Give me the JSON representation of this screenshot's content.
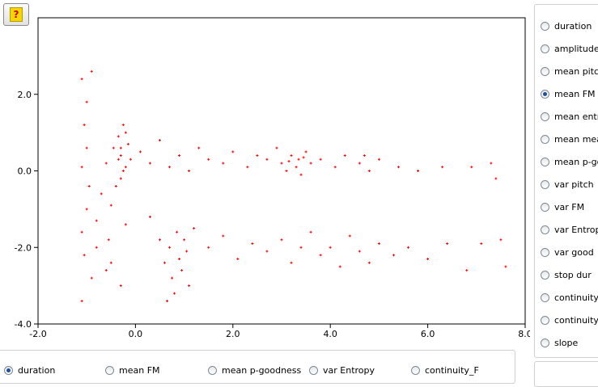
{
  "help_button": {
    "label": "?"
  },
  "chart_data": {
    "type": "scatter",
    "color": "#ff0000",
    "xlim": [
      -2,
      8
    ],
    "ylim": [
      -4,
      4
    ],
    "xticks": [
      {
        "value": -2,
        "label": "-2.0"
      },
      {
        "value": 0,
        "label": "0.0"
      },
      {
        "value": 2,
        "label": "2.0"
      },
      {
        "value": 4,
        "label": "4.0"
      },
      {
        "value": 6,
        "label": "6.0"
      },
      {
        "value": 8,
        "label": "8.0"
      }
    ],
    "yticks": [
      {
        "value": -4,
        "label": "-4.0"
      },
      {
        "value": -2,
        "label": "-2.0"
      },
      {
        "value": 0,
        "label": "0.0"
      },
      {
        "value": 2,
        "label": "2.0"
      }
    ],
    "x": [
      -1.1,
      -1.0,
      -0.9,
      -1.05,
      -1.0,
      -1.1,
      -0.95,
      -1.0,
      -1.1,
      -1.05,
      -0.9,
      -1.1,
      -0.8,
      -0.7,
      -0.6,
      -0.55,
      -0.5,
      -0.45,
      -0.35,
      -0.3,
      -0.25,
      -0.2,
      -0.3,
      -0.15,
      -0.25,
      -0.35,
      -0.2,
      -0.3,
      -0.1,
      -0.4,
      -0.6,
      -0.3,
      0.1,
      0.3,
      0.5,
      0.7,
      0.9,
      1.1,
      1.3,
      1.5,
      1.8,
      2.0,
      2.3,
      2.5,
      2.7,
      2.9,
      3.0,
      3.1,
      3.2,
      3.3,
      3.35,
      3.4,
      3.5,
      3.6,
      3.15,
      3.45,
      3.8,
      4.1,
      4.3,
      4.6,
      4.7,
      4.8,
      5.0,
      5.4,
      5.8,
      6.3,
      6.9,
      7.3,
      7.4,
      0.3,
      0.5,
      0.6,
      0.7,
      0.75,
      0.8,
      0.85,
      0.9,
      0.95,
      1.0,
      1.05,
      1.1,
      1.2,
      0.65,
      1.5,
      1.8,
      2.1,
      2.4,
      2.7,
      3.0,
      3.2,
      3.4,
      3.6,
      3.8,
      4.0,
      4.2,
      4.4,
      4.6,
      4.8,
      5.0,
      5.3,
      5.6,
      6.0,
      6.4,
      6.8,
      7.1,
      7.5,
      7.6,
      -0.8,
      -0.5,
      -0.2
    ],
    "values": [
      2.4,
      1.8,
      2.6,
      1.2,
      0.6,
      0.1,
      -0.4,
      -1.0,
      -1.6,
      -2.2,
      -2.8,
      -3.4,
      -1.3,
      -0.6,
      0.2,
      -1.8,
      -0.9,
      0.6,
      0.9,
      0.4,
      1.2,
      0.1,
      -0.2,
      0.7,
      0.0,
      0.3,
      1.0,
      0.6,
      0.3,
      -0.4,
      -2.6,
      -3.0,
      0.5,
      0.2,
      0.8,
      0.1,
      0.4,
      0.0,
      0.6,
      0.3,
      0.2,
      0.5,
      0.1,
      0.4,
      0.3,
      0.6,
      0.2,
      0.0,
      0.4,
      0.1,
      0.3,
      -0.1,
      0.5,
      0.2,
      0.25,
      0.35,
      0.3,
      0.1,
      0.4,
      0.2,
      0.4,
      0.0,
      0.3,
      0.1,
      0.0,
      0.1,
      0.1,
      0.2,
      -0.2,
      -1.2,
      -1.8,
      -2.4,
      -2.0,
      -2.8,
      -3.2,
      -1.6,
      -2.3,
      -2.6,
      -1.8,
      -2.1,
      -3.0,
      -1.5,
      -3.4,
      -2.0,
      -1.7,
      -2.3,
      -1.9,
      -2.1,
      -1.8,
      -2.4,
      -2.0,
      -1.6,
      -2.2,
      -2.0,
      -2.5,
      -1.7,
      -2.1,
      -2.4,
      -1.9,
      -2.2,
      -2.0,
      -2.3,
      -1.9,
      -2.6,
      -1.9,
      -1.8,
      -2.5,
      -2.0,
      -2.4,
      -1.4
    ]
  },
  "y_options": {
    "selected": 3,
    "labels": [
      "duration",
      "amplitude",
      "mean pitch",
      "mean FM",
      "mean entrop",
      "mean mean",
      "mean p-goo",
      "var pitch",
      "var FM",
      "var Entropy",
      "var good",
      "stop dur",
      "continuity_F",
      "continuity_t",
      "slope"
    ]
  },
  "x_options": {
    "selected": 0,
    "labels": [
      "duration",
      "mean FM",
      "mean p-goodness",
      "var Entropy",
      "continuity_F"
    ]
  }
}
